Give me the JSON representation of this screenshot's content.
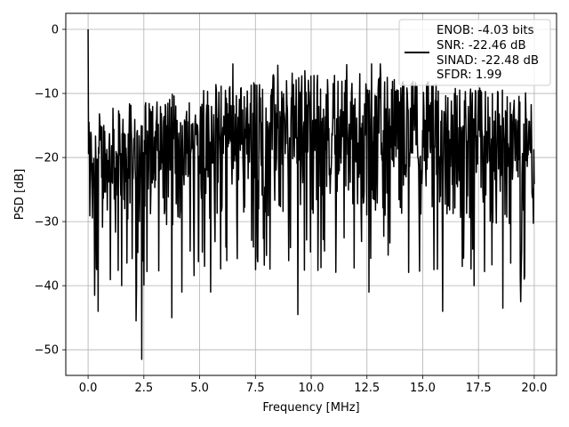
{
  "chart_data": {
    "type": "line",
    "title": "",
    "xlabel": "Frequency [MHz]",
    "ylabel": "PSD [dB]",
    "xlim": [
      -1.0,
      21.0
    ],
    "ylim": [
      -54.0,
      2.5
    ],
    "xticks": [
      0.0,
      2.5,
      5.0,
      7.5,
      10.0,
      12.5,
      15.0,
      17.5,
      20.0
    ],
    "xtick_labels": [
      "0.0",
      "2.5",
      "5.0",
      "7.5",
      "10.0",
      "12.5",
      "15.0",
      "17.5",
      "20.0"
    ],
    "yticks": [
      0,
      -10,
      -20,
      -30,
      -40,
      -50
    ],
    "ytick_labels": [
      "0",
      "−10",
      "−20",
      "−30",
      "−40",
      "−50"
    ],
    "grid": true,
    "legend_position": "top-right",
    "legend_lines": [
      "ENOB: -4.03 bits",
      "SNR: -22.46 dB",
      "SINAD: -22.48 dB",
      "SFDR: 1.99"
    ],
    "series": [
      {
        "color": "#000000",
        "x_range": [
          0.0,
          20.0
        ],
        "n_points": 1024,
        "noise_band_min": [
          [
            0.0,
            -33
          ],
          [
            5.0,
            -30
          ],
          [
            10.0,
            -29
          ],
          [
            15.0,
            -29
          ],
          [
            20.0,
            -31
          ]
        ],
        "noise_band_max": [
          [
            0.0,
            -13
          ],
          [
            5.0,
            -9
          ],
          [
            10.0,
            -6
          ],
          [
            15.0,
            -8
          ],
          [
            20.0,
            -10
          ]
        ],
        "peaks": [
          {
            "x": 0.0,
            "y": 0.0
          },
          {
            "x": 6.5,
            "y": -5.4
          },
          {
            "x": 8.5,
            "y": -5.6
          },
          {
            "x": 11.6,
            "y": -5.5
          },
          {
            "x": 12.7,
            "y": -5.4
          },
          {
            "x": 13.1,
            "y": -5.4
          }
        ],
        "dips": [
          {
            "x": 0.3,
            "y": -41.5
          },
          {
            "x": 0.45,
            "y": -44.0
          },
          {
            "x": 1.5,
            "y": -40.0
          },
          {
            "x": 2.15,
            "y": -45.5
          },
          {
            "x": 2.4,
            "y": -51.5
          },
          {
            "x": 3.75,
            "y": -45.0
          },
          {
            "x": 4.2,
            "y": -41.0
          },
          {
            "x": 5.5,
            "y": -41.0
          },
          {
            "x": 7.5,
            "y": -37.5
          },
          {
            "x": 9.4,
            "y": -44.5
          },
          {
            "x": 12.6,
            "y": -41.0
          },
          {
            "x": 15.9,
            "y": -44.0
          },
          {
            "x": 17.3,
            "y": -40.0
          },
          {
            "x": 18.6,
            "y": -43.5
          },
          {
            "x": 19.4,
            "y": -42.5
          }
        ]
      }
    ]
  }
}
